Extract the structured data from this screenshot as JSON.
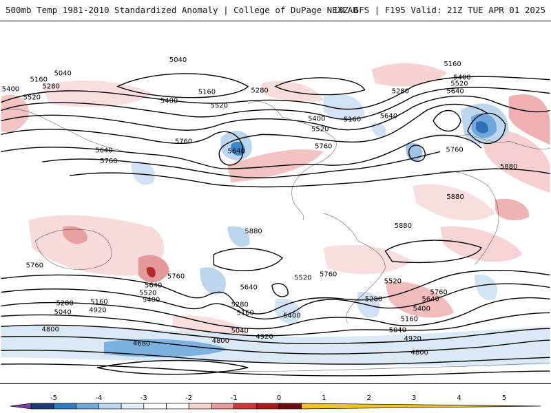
{
  "header": {
    "left_title": "500mb Temp 1981-2010 Standardized Anomaly | College of DuPage NEXLAB",
    "right_title": "18Z GFS | F195 Valid: 21Z TUE APR 01 2025"
  },
  "colorbar": {
    "ticks": [
      "-5",
      "-4",
      "-3",
      "-2",
      "-1",
      "0",
      "1",
      "2",
      "3",
      "4",
      "5"
    ],
    "colors": [
      "#7b3fa0",
      "#1f3c7a",
      "#2f7cc4",
      "#6ea8dc",
      "#bdd6ef",
      "#e4eef8",
      "#ffffff",
      "#ffffff",
      "#f7d3d3",
      "#e99a9a",
      "#cc3b3b",
      "#a51c1c",
      "#6e0f0f",
      "#f2c22a"
    ]
  },
  "contours": {
    "labels": [
      "5040",
      "5040",
      "5160",
      "5280",
      "5400",
      "5520",
      "5160",
      "5280",
      "5400",
      "5520",
      "5760",
      "5640",
      "5640",
      "5760",
      "5400",
      "5520",
      "5160",
      "5280",
      "5640",
      "5760",
      "5400",
      "5520",
      "5640",
      "5160",
      "5280",
      "5760",
      "5880",
      "5880",
      "5880",
      "5880",
      "5760",
      "5760",
      "5640",
      "5520",
      "5400",
      "5280",
      "5160",
      "5040",
      "4920",
      "4800",
      "4680",
      "4800",
      "5520",
      "5760",
      "5640",
      "5520",
      "5400",
      "5280",
      "5160",
      "5040",
      "4920",
      "4800",
      "5520",
      "5760",
      "5640",
      "5400",
      "5280",
      "5160",
      "5040",
      "4920",
      "4800"
    ]
  }
}
